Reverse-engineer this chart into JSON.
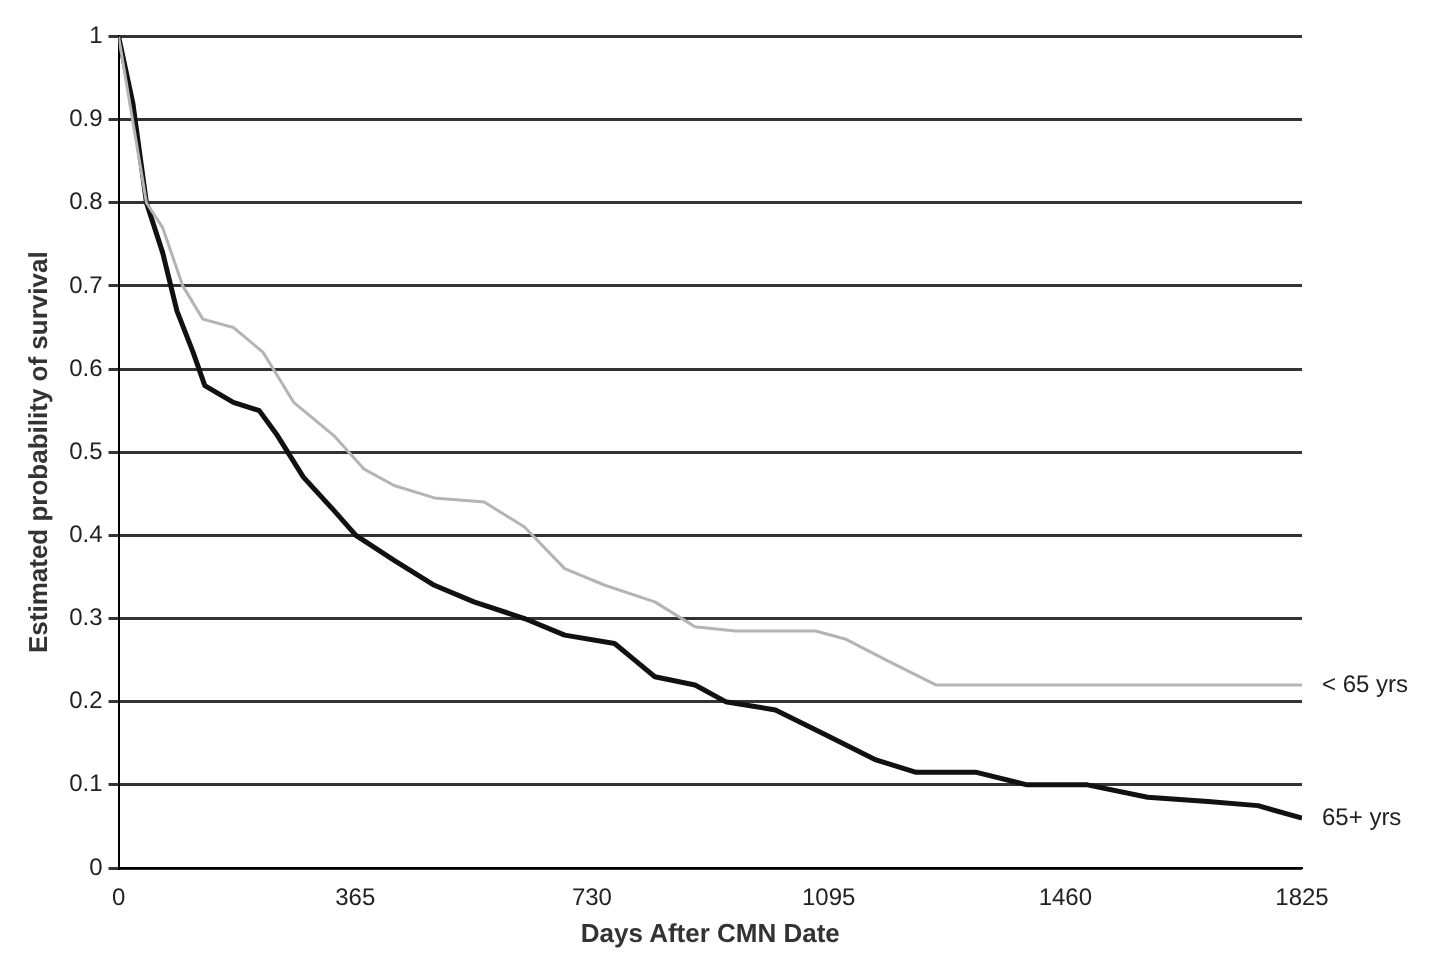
{
  "chart_data": {
    "type": "line",
    "xlabel": "Days After CMN Date",
    "ylabel": "Estimated probability of survival",
    "xlim": [
      0,
      1825
    ],
    "xticks": [
      0,
      365,
      730,
      1095,
      1460,
      1825
    ],
    "ylim": [
      0,
      1
    ],
    "yticks": [
      0,
      0.1,
      0.2,
      0.3,
      0.4,
      0.5,
      0.6,
      0.7,
      0.8,
      0.9,
      1
    ],
    "grid": "y",
    "legend": false,
    "marker": "none",
    "line_style": "solid",
    "series": [
      {
        "name": "< 65 yrs",
        "color": "#b4b4b4",
        "x": [
          0,
          43,
          68,
          99,
          130,
          177,
          223,
          270,
          332,
          378,
          425,
          487,
          564,
          626,
          688,
          750,
          827,
          889,
          951,
          1075,
          1122,
          1184,
          1261,
          1339,
          1825
        ],
        "values": [
          1.0,
          0.8,
          0.77,
          0.7,
          0.66,
          0.65,
          0.62,
          0.56,
          0.52,
          0.48,
          0.46,
          0.445,
          0.44,
          0.41,
          0.36,
          0.34,
          0.32,
          0.29,
          0.285,
          0.285,
          0.275,
          0.25,
          0.22,
          0.22,
          0.22
        ]
      },
      {
        "name": "65+ yrs",
        "color": "#111111",
        "x": [
          0,
          22,
          43,
          68,
          90,
          115,
          133,
          177,
          217,
          245,
          285,
          332,
          366,
          425,
          487,
          548,
          626,
          688,
          765,
          796,
          827,
          889,
          936,
          1013,
          1091,
          1168,
          1230,
          1323,
          1401,
          1494,
          1587,
          1680,
          1757,
          1825
        ],
        "values": [
          1.0,
          0.92,
          0.8,
          0.74,
          0.67,
          0.62,
          0.58,
          0.56,
          0.55,
          0.52,
          0.47,
          0.43,
          0.4,
          0.37,
          0.34,
          0.32,
          0.3,
          0.28,
          0.27,
          0.25,
          0.23,
          0.22,
          0.2,
          0.19,
          0.16,
          0.13,
          0.115,
          0.115,
          0.1,
          0.1,
          0.085,
          0.08,
          0.075,
          0.06
        ]
      }
    ]
  }
}
